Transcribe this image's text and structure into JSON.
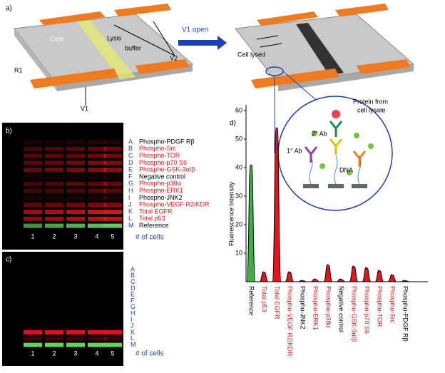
{
  "panel_a": {
    "label": "a)",
    "cells": "Cells",
    "lysis": "Lysis",
    "buffer": "buffer",
    "v2": "V2",
    "r1": "R1",
    "v1": "V1",
    "v1_open": "V1 open",
    "cell_lysed": "Cell lysed",
    "protein_line1": "Protein from",
    "protein_line2": "cell lysate",
    "ab2": "2° Ab",
    "ab1": "1° Ab",
    "dna": "DNA"
  },
  "panel_b": {
    "label": "b)",
    "rows": [
      {
        "letter": "A",
        "name": "Phospho-PDGF Rβ",
        "color": "#000000"
      },
      {
        "letter": "B",
        "name": "Phospho-Src",
        "color": "#e8141b"
      },
      {
        "letter": "C",
        "name": "Phospho-TOR",
        "color": "#e8141b"
      },
      {
        "letter": "D",
        "name": "Phospho-p70 S6",
        "color": "#e8141b"
      },
      {
        "letter": "E",
        "name": "Phospho-GSK-3α/β",
        "color": "#e8141b"
      },
      {
        "letter": "F",
        "name": "Negative control",
        "color": "#000000"
      },
      {
        "letter": "G",
        "name": "Phospho-p38α",
        "color": "#e8141b"
      },
      {
        "letter": "H",
        "name": "Phospho-ERK1",
        "color": "#e8141b"
      },
      {
        "letter": "I",
        "name": "Phospho-JNK2",
        "color": "#000000"
      },
      {
        "letter": "J",
        "name": "Phospho-VEGF R2/KDR",
        "color": "#e8141b"
      },
      {
        "letter": "K",
        "name": "Total EGFR",
        "color": "#e8141b"
      },
      {
        "letter": "L",
        "name": "Total p53",
        "color": "#e8141b"
      },
      {
        "letter": "M",
        "name": "Reference",
        "color": "#000000"
      }
    ],
    "columns": [
      "1",
      "2",
      "3",
      "4",
      "5"
    ],
    "x_label": "# of cells"
  },
  "panel_c": {
    "label": "c)",
    "rows": [
      "A",
      "B",
      "C",
      "D",
      "E",
      "F",
      "G",
      "H",
      "I",
      "J",
      "K",
      "L",
      "M"
    ],
    "columns": [
      "1",
      "2",
      "3",
      "4",
      "5"
    ],
    "x_label": "# of cells"
  },
  "chart_data": {
    "type": "peaks",
    "title": "d)",
    "ylabel": "Fluorescence Intensity",
    "categories": [
      "Reference",
      "Total p53",
      "Total EGFR",
      "Phospho-VEGF R2/KDR",
      "Phospho-JNK2",
      "Phospho-ERK1",
      "Phospho-p38α",
      "Negative control",
      "Phospho-GSK-3α/β",
      "Phospho-p70 S6",
      "Phospho-TOR",
      "Phospho-Src",
      "Phospho-PDGF Rβ"
    ],
    "values": [
      41,
      3.5,
      54,
      3.5,
      0.5,
      1,
      6,
      1,
      5.5,
      5,
      4,
      2.5,
      0.5
    ],
    "colors": [
      "#3cb043",
      "#e8141b",
      "#e8141b",
      "#e8141b",
      "#e8141b",
      "#e8141b",
      "#e8141b",
      "#e8141b",
      "#e8141b",
      "#e8141b",
      "#e8141b",
      "#e8141b",
      "#e8141b"
    ],
    "label_colors": [
      "#000000",
      "#e8141b",
      "#e8141b",
      "#e8141b",
      "#000000",
      "#e8141b",
      "#e8141b",
      "#000000",
      "#e8141b",
      "#e8141b",
      "#e8141b",
      "#e8141b",
      "#000000"
    ],
    "ylim": [
      0,
      62
    ],
    "yticks": [
      10,
      20,
      30,
      40,
      50,
      60
    ]
  }
}
